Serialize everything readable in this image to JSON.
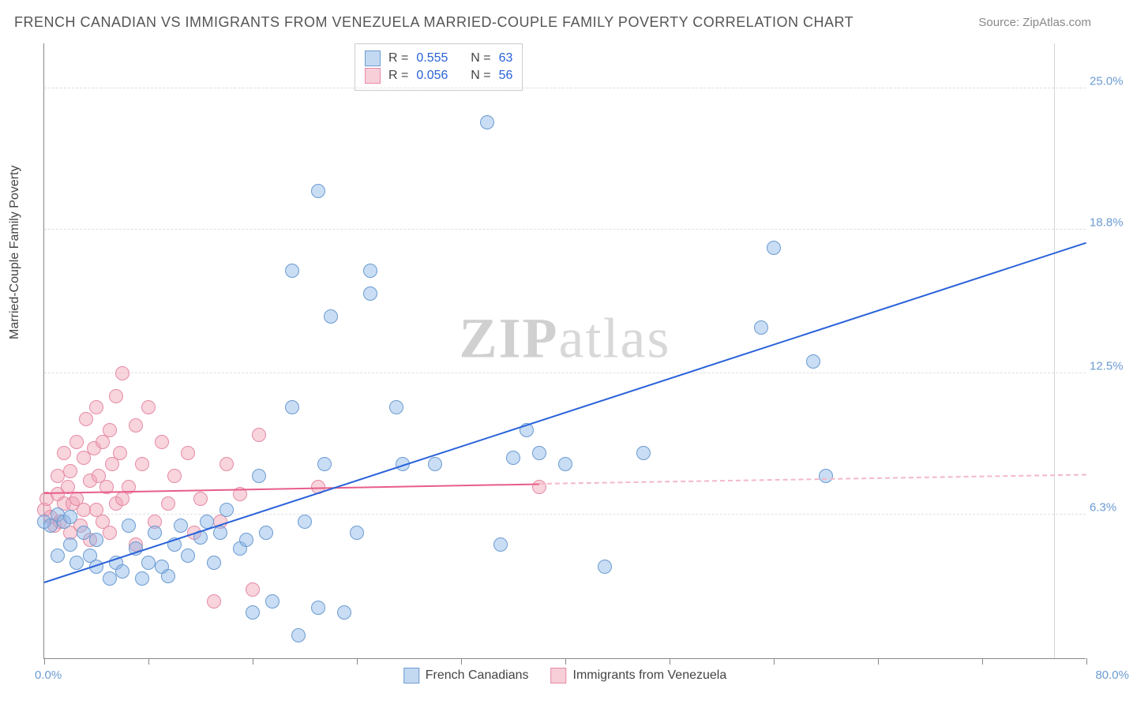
{
  "title": "FRENCH CANADIAN VS IMMIGRANTS FROM VENEZUELA MARRIED-COUPLE FAMILY POVERTY CORRELATION CHART",
  "source_label": "Source: ",
  "source_site": "ZipAtlas.com",
  "ylabel": "Married-Couple Family Poverty",
  "watermark_a": "ZIP",
  "watermark_b": "atlas",
  "chart": {
    "type": "scatter",
    "xlim": [
      0,
      80
    ],
    "ylim": [
      0,
      27
    ],
    "yticks": [
      6.3,
      12.5,
      18.8,
      25.0
    ],
    "ytick_labels": [
      "6.3%",
      "12.5%",
      "18.8%",
      "25.0%"
    ],
    "xtick_positions": [
      0,
      8,
      16,
      24,
      32,
      40,
      48,
      56,
      64,
      72,
      80
    ],
    "xlabel_min": "0.0%",
    "xlabel_max": "80.0%",
    "background_color": "#ffffff",
    "grid_color": "#e0e0e0",
    "axis_color": "#888888",
    "tick_label_color": "#6b9bd1",
    "marker_radius": 9,
    "series": {
      "blue": {
        "name": "French Canadians",
        "fill": "rgba(135,180,230,0.45)",
        "stroke": "#6b9bd1",
        "R": "0.555",
        "N": "63",
        "trend": {
          "x1": 0,
          "y1": 3.3,
          "x2": 80,
          "y2": 18.2,
          "color": "#2962d9",
          "width": 2
        },
        "points": [
          [
            0,
            6.0
          ],
          [
            0.5,
            5.8
          ],
          [
            1,
            6.3
          ],
          [
            1,
            4.5
          ],
          [
            1.5,
            6.0
          ],
          [
            2,
            5.0
          ],
          [
            2,
            6.2
          ],
          [
            2.5,
            4.2
          ],
          [
            3,
            5.5
          ],
          [
            3.5,
            4.5
          ],
          [
            4,
            4.0
          ],
          [
            4,
            5.2
          ],
          [
            5,
            3.5
          ],
          [
            5.5,
            4.2
          ],
          [
            6,
            3.8
          ],
          [
            6.5,
            5.8
          ],
          [
            7,
            4.8
          ],
          [
            7.5,
            3.5
          ],
          [
            8,
            4.2
          ],
          [
            8.5,
            5.5
          ],
          [
            9,
            4.0
          ],
          [
            9.5,
            3.6
          ],
          [
            10,
            5.0
          ],
          [
            10.5,
            5.8
          ],
          [
            11,
            4.5
          ],
          [
            12,
            5.3
          ],
          [
            12.5,
            6.0
          ],
          [
            13,
            4.2
          ],
          [
            13.5,
            5.5
          ],
          [
            14,
            6.5
          ],
          [
            15,
            4.8
          ],
          [
            15.5,
            5.2
          ],
          [
            16,
            2.0
          ],
          [
            16.5,
            8.0
          ],
          [
            17,
            5.5
          ],
          [
            17.5,
            2.5
          ],
          [
            19,
            17.0
          ],
          [
            19,
            11.0
          ],
          [
            19.5,
            1.0
          ],
          [
            20,
            6.0
          ],
          [
            21,
            2.2
          ],
          [
            21.5,
            8.5
          ],
          [
            21,
            20.5
          ],
          [
            22,
            15.0
          ],
          [
            23,
            2.0
          ],
          [
            24,
            5.5
          ],
          [
            25,
            17.0
          ],
          [
            25,
            16.0
          ],
          [
            27,
            11.0
          ],
          [
            27.5,
            8.5
          ],
          [
            30,
            8.5
          ],
          [
            34,
            23.5
          ],
          [
            35,
            5.0
          ],
          [
            36,
            8.8
          ],
          [
            37,
            10.0
          ],
          [
            38,
            9.0
          ],
          [
            40,
            8.5
          ],
          [
            43,
            4.0
          ],
          [
            46,
            9.0
          ],
          [
            55,
            14.5
          ],
          [
            56,
            18.0
          ],
          [
            59,
            13.0
          ],
          [
            60,
            8.0
          ]
        ]
      },
      "pink": {
        "name": "Immigrants from Venezuela",
        "fill": "rgba(240,160,180,0.45)",
        "stroke": "#e68aa5",
        "R": "0.056",
        "N": "56",
        "trend_solid": {
          "x1": 0,
          "y1": 7.2,
          "x2": 38,
          "y2": 7.6,
          "color": "#e85d8a",
          "width": 2
        },
        "trend_dash": {
          "x1": 38,
          "y1": 7.6,
          "x2": 80,
          "y2": 8.0,
          "color": "#f4b8c8",
          "width": 2
        },
        "points": [
          [
            0,
            6.5
          ],
          [
            0.2,
            7.0
          ],
          [
            0.5,
            6.2
          ],
          [
            0.8,
            5.8
          ],
          [
            1,
            7.2
          ],
          [
            1,
            8.0
          ],
          [
            1.2,
            6.0
          ],
          [
            1.5,
            6.8
          ],
          [
            1.5,
            9.0
          ],
          [
            1.8,
            7.5
          ],
          [
            2,
            5.5
          ],
          [
            2,
            8.2
          ],
          [
            2.2,
            6.8
          ],
          [
            2.5,
            9.5
          ],
          [
            2.5,
            7.0
          ],
          [
            2.8,
            5.8
          ],
          [
            3,
            8.8
          ],
          [
            3,
            6.5
          ],
          [
            3.2,
            10.5
          ],
          [
            3.5,
            7.8
          ],
          [
            3.5,
            5.2
          ],
          [
            3.8,
            9.2
          ],
          [
            4,
            6.5
          ],
          [
            4,
            11.0
          ],
          [
            4.2,
            8.0
          ],
          [
            4.5,
            6.0
          ],
          [
            4.5,
            9.5
          ],
          [
            4.8,
            7.5
          ],
          [
            5,
            10.0
          ],
          [
            5,
            5.5
          ],
          [
            5.2,
            8.5
          ],
          [
            5.5,
            6.8
          ],
          [
            5.5,
            11.5
          ],
          [
            5.8,
            9.0
          ],
          [
            6,
            7.0
          ],
          [
            6,
            12.5
          ],
          [
            6.5,
            7.5
          ],
          [
            7,
            10.2
          ],
          [
            7,
            5.0
          ],
          [
            7.5,
            8.5
          ],
          [
            8,
            11.0
          ],
          [
            8.5,
            6.0
          ],
          [
            9,
            9.5
          ],
          [
            9.5,
            6.8
          ],
          [
            10,
            8.0
          ],
          [
            11,
            9.0
          ],
          [
            11.5,
            5.5
          ],
          [
            12,
            7.0
          ],
          [
            13,
            2.5
          ],
          [
            13.5,
            6.0
          ],
          [
            14,
            8.5
          ],
          [
            15,
            7.2
          ],
          [
            16,
            3.0
          ],
          [
            16.5,
            9.8
          ],
          [
            21,
            7.5
          ],
          [
            38,
            7.5
          ]
        ]
      }
    }
  },
  "legend_top": {
    "r_label": "R =",
    "n_label": "N ="
  },
  "legend_bottom": {
    "blue": "French Canadians",
    "pink": "Immigrants from Venezuela"
  }
}
